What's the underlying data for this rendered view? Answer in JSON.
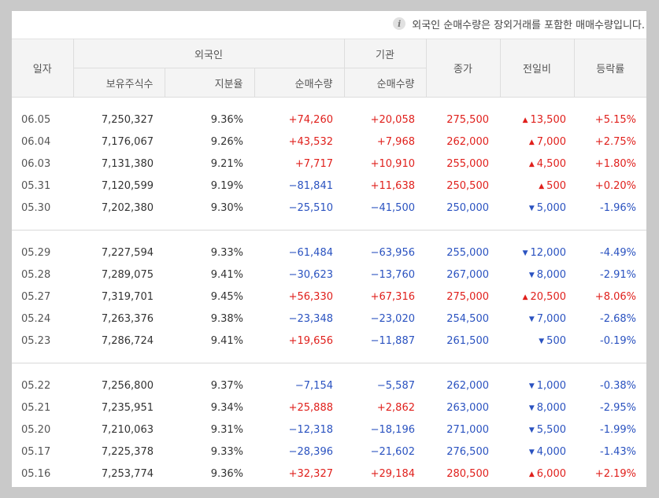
{
  "notice": "외국인 순매수량은 장외거래를 포함한 매매수량입니다.",
  "headers": {
    "date": "일자",
    "foreign": "외국인",
    "institution": "기관",
    "close": "종가",
    "change": "전일비",
    "rate": "등락률",
    "hold": "보유주식수",
    "ratio": "지분율",
    "net_foreign": "순매수량",
    "net_inst": "순매수량"
  },
  "groups": [
    [
      {
        "date": "06.05",
        "hold": "7,250,327",
        "ratio": "9.36%",
        "foreign": "+74,260",
        "inst": "+20,058",
        "close": "275,500",
        "dir": "up",
        "chg": "13,500",
        "rate": "+5.15%"
      },
      {
        "date": "06.04",
        "hold": "7,176,067",
        "ratio": "9.26%",
        "foreign": "+43,532",
        "inst": "+7,968",
        "close": "262,000",
        "dir": "up",
        "chg": "7,000",
        "rate": "+2.75%"
      },
      {
        "date": "06.03",
        "hold": "7,131,380",
        "ratio": "9.21%",
        "foreign": "+7,717",
        "inst": "+10,910",
        "close": "255,000",
        "dir": "up",
        "chg": "4,500",
        "rate": "+1.80%"
      },
      {
        "date": "05.31",
        "hold": "7,120,599",
        "ratio": "9.19%",
        "foreign": "−81,841",
        "inst": "+11,638",
        "close": "250,500",
        "dir": "up",
        "chg": "500",
        "rate": "+0.20%"
      },
      {
        "date": "05.30",
        "hold": "7,202,380",
        "ratio": "9.30%",
        "foreign": "−25,510",
        "inst": "−41,500",
        "close": "250,000",
        "dir": "down",
        "chg": "5,000",
        "rate": "-1.96%"
      }
    ],
    [
      {
        "date": "05.29",
        "hold": "7,227,594",
        "ratio": "9.33%",
        "foreign": "−61,484",
        "inst": "−63,956",
        "close": "255,000",
        "dir": "down",
        "chg": "12,000",
        "rate": "-4.49%"
      },
      {
        "date": "05.28",
        "hold": "7,289,075",
        "ratio": "9.41%",
        "foreign": "−30,623",
        "inst": "−13,760",
        "close": "267,000",
        "dir": "down",
        "chg": "8,000",
        "rate": "-2.91%"
      },
      {
        "date": "05.27",
        "hold": "7,319,701",
        "ratio": "9.45%",
        "foreign": "+56,330",
        "inst": "+67,316",
        "close": "275,000",
        "dir": "up",
        "chg": "20,500",
        "rate": "+8.06%"
      },
      {
        "date": "05.24",
        "hold": "7,263,376",
        "ratio": "9.38%",
        "foreign": "−23,348",
        "inst": "−23,020",
        "close": "254,500",
        "dir": "down",
        "chg": "7,000",
        "rate": "-2.68%"
      },
      {
        "date": "05.23",
        "hold": "7,286,724",
        "ratio": "9.41%",
        "foreign": "+19,656",
        "inst": "−11,887",
        "close": "261,500",
        "dir": "down",
        "chg": "500",
        "rate": "-0.19%"
      }
    ],
    [
      {
        "date": "05.22",
        "hold": "7,256,800",
        "ratio": "9.37%",
        "foreign": "−7,154",
        "inst": "−5,587",
        "close": "262,000",
        "dir": "down",
        "chg": "1,000",
        "rate": "-0.38%"
      },
      {
        "date": "05.21",
        "hold": "7,235,951",
        "ratio": "9.34%",
        "foreign": "+25,888",
        "inst": "+2,862",
        "close": "263,000",
        "dir": "down",
        "chg": "8,000",
        "rate": "-2.95%"
      },
      {
        "date": "05.20",
        "hold": "7,210,063",
        "ratio": "9.31%",
        "foreign": "−12,318",
        "inst": "−18,196",
        "close": "271,000",
        "dir": "down",
        "chg": "5,500",
        "rate": "-1.99%"
      },
      {
        "date": "05.17",
        "hold": "7,225,378",
        "ratio": "9.33%",
        "foreign": "−28,396",
        "inst": "−21,602",
        "close": "276,500",
        "dir": "down",
        "chg": "4,000",
        "rate": "-1.43%"
      },
      {
        "date": "05.16",
        "hold": "7,253,774",
        "ratio": "9.36%",
        "foreign": "+32,327",
        "inst": "+29,184",
        "close": "280,500",
        "dir": "up",
        "chg": "6,000",
        "rate": "+2.19%"
      }
    ]
  ],
  "colors": {
    "up": "#e0201c",
    "down": "#2a52c0"
  },
  "icons": {
    "notice": "info-icon",
    "up": "triangle-up-icon",
    "down": "triangle-down-icon"
  }
}
